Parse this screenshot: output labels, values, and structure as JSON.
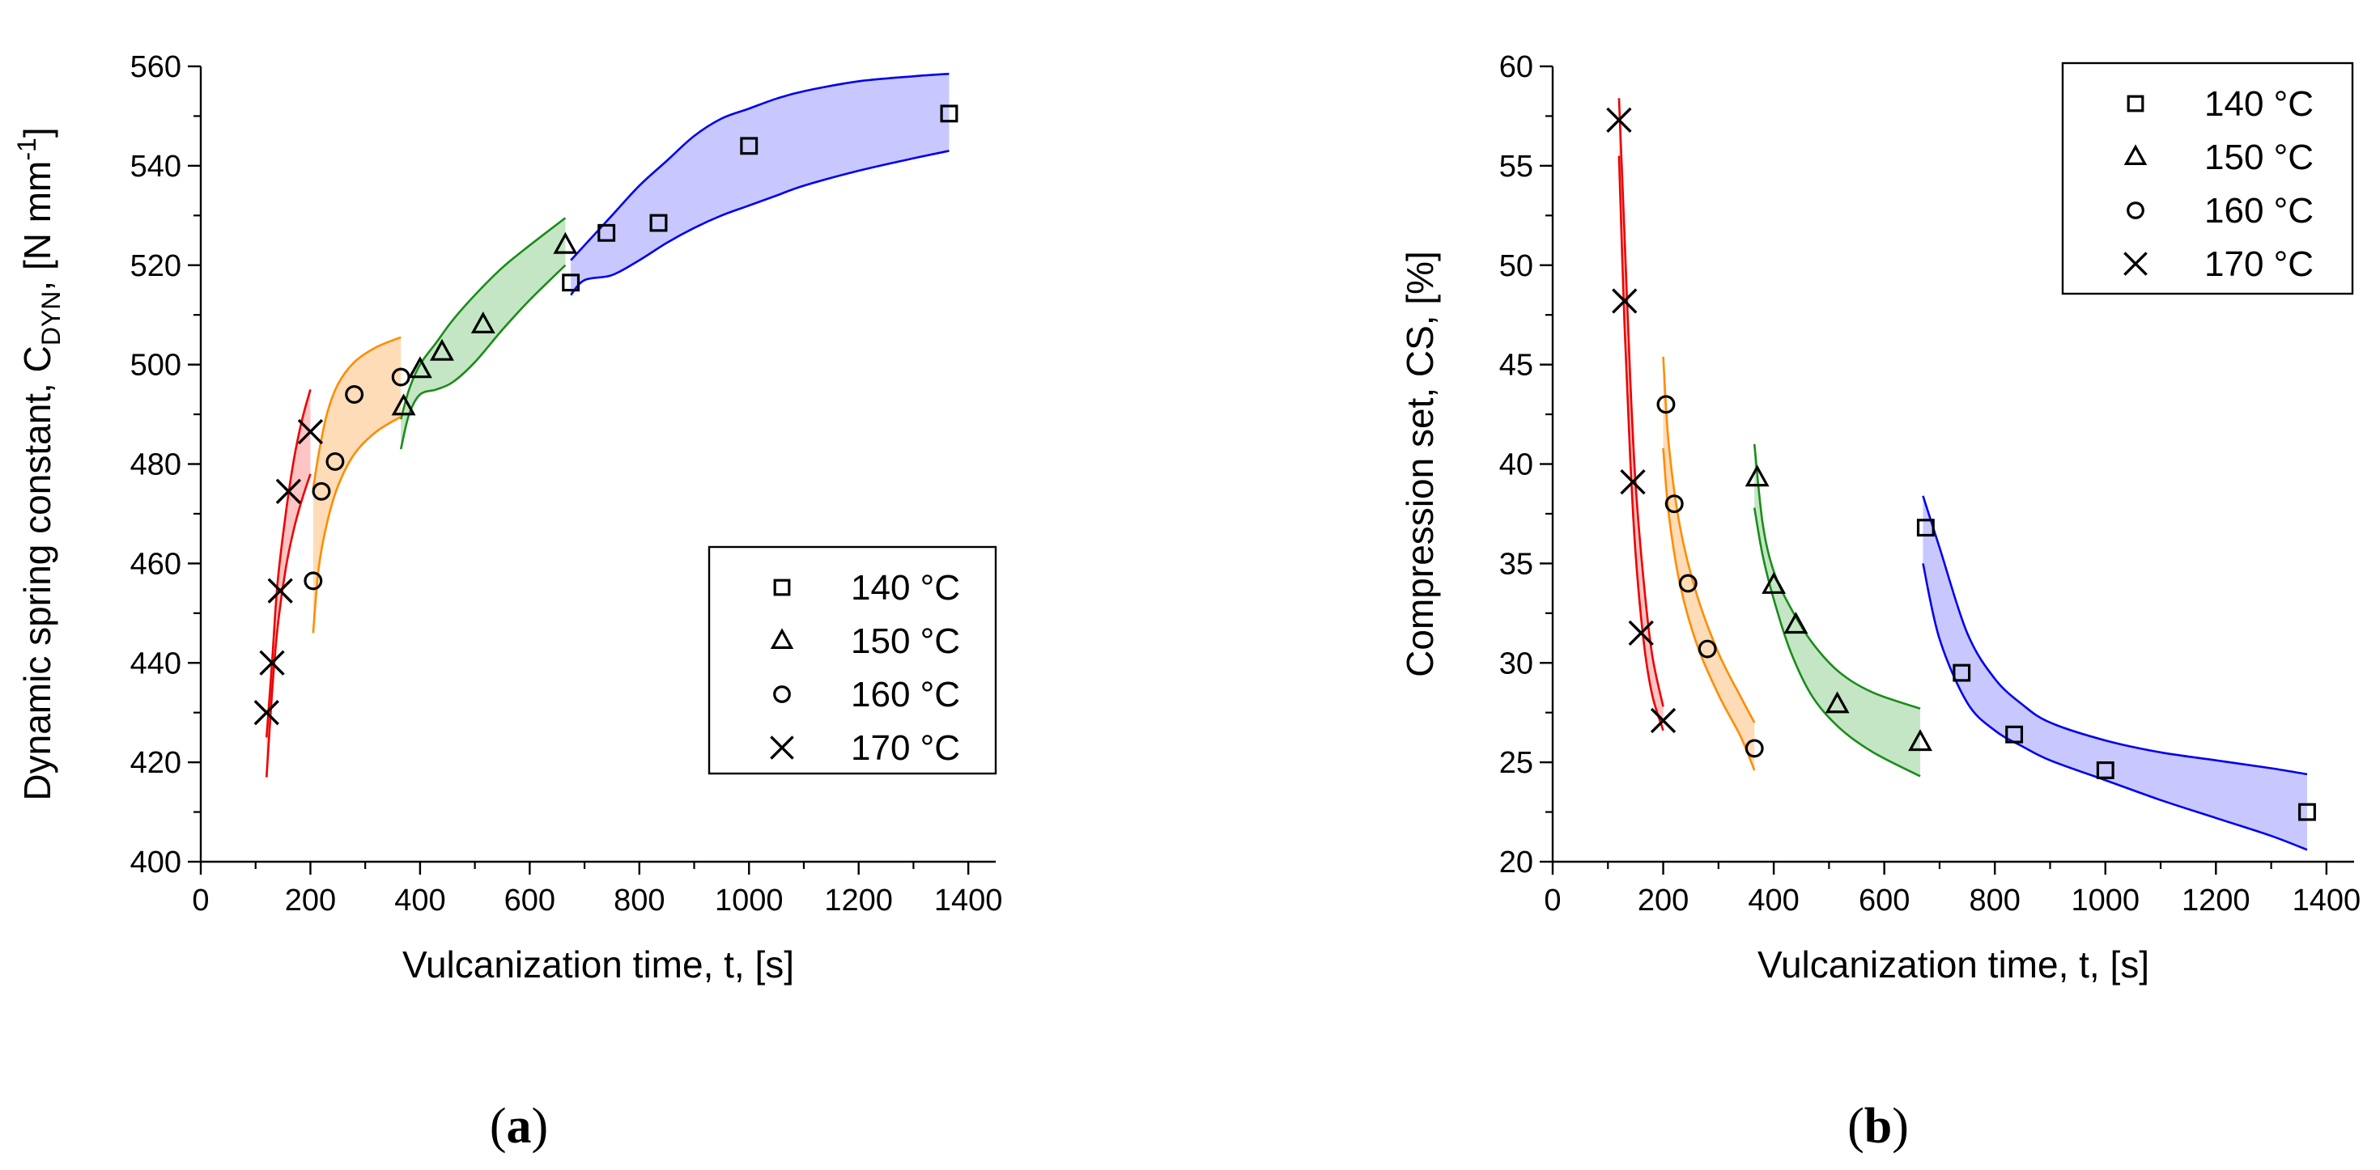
{
  "chart_data": [
    {
      "type": "scatter",
      "panel": "(a)",
      "panel_letter": "a",
      "xlabel": "Vulcanization time, t, [s]",
      "ylabel_parts": [
        "Dynamic spring constant, C",
        "DYN",
        ", [N mm",
        "-1",
        "]"
      ],
      "xlim": [
        0,
        1450
      ],
      "ylim": [
        400,
        560
      ],
      "xticks": [
        0,
        200,
        400,
        600,
        800,
        1000,
        1200,
        1400
      ],
      "yticks": [
        400,
        420,
        440,
        460,
        480,
        500,
        520,
        540,
        560
      ],
      "legend_position": "bottom-right",
      "series": [
        {
          "name": "140 °C",
          "marker": "square",
          "color": "#0000ee",
          "fill": "#c8c8ff",
          "x": [
            675,
            740,
            835,
            1000,
            1365
          ],
          "y": [
            516.5,
            526.5,
            528.5,
            544,
            550.5
          ],
          "band_x": [
            675,
            700,
            750,
            800,
            850,
            900,
            950,
            1000,
            1050,
            1100,
            1200,
            1300,
            1365
          ],
          "band_upper": [
            521,
            524,
            530,
            536,
            541,
            546,
            549.5,
            551.5,
            553.5,
            555,
            557,
            558,
            558.5
          ],
          "band_lower": [
            514,
            517,
            518,
            521,
            524.5,
            527.5,
            530,
            532,
            534,
            536,
            539,
            541.5,
            543
          ]
        },
        {
          "name": "150 °C",
          "marker": "triangle",
          "color": "#1a8c1a",
          "fill": "#c4e6c4",
          "x": [
            370,
            400,
            440,
            515,
            665
          ],
          "y": [
            491.5,
            499,
            502.5,
            508,
            524
          ],
          "band_x": [
            365,
            380,
            400,
            430,
            460,
            500,
            550,
            600,
            665
          ],
          "band_upper": [
            489,
            495,
            500,
            504.5,
            509,
            514,
            519.5,
            524,
            529.5
          ],
          "band_lower": [
            483,
            490,
            494,
            495,
            496.5,
            500.5,
            507,
            513,
            520
          ]
        },
        {
          "name": "160 °C",
          "marker": "circle",
          "color": "#ff8c00",
          "fill": "#ffdcb8",
          "x": [
            205,
            220,
            245,
            280,
            365
          ],
          "y": [
            456.5,
            474.5,
            480.5,
            494,
            497.5
          ],
          "band_x": [
            205,
            215,
            230,
            250,
            280,
            320,
            365
          ],
          "band_upper": [
            475,
            482,
            490,
            496,
            500.5,
            503.5,
            505.5
          ],
          "band_lower": [
            446,
            459,
            468,
            475.5,
            482,
            486.5,
            489.5
          ]
        },
        {
          "name": "170 °C",
          "marker": "cross",
          "color": "#ee0000",
          "fill": "#ffc4c4",
          "x": [
            120,
            130,
            145,
            160,
            200
          ],
          "y": [
            430,
            440,
            454.5,
            474.5,
            486.5
          ],
          "band_x": [
            120,
            130,
            140,
            155,
            170,
            185,
            200
          ],
          "band_upper": [
            425,
            440,
            456,
            470,
            481,
            489,
            495
          ],
          "band_lower": [
            417,
            434,
            447,
            459,
            467,
            473,
            478
          ]
        }
      ]
    },
    {
      "type": "scatter",
      "panel": "(b)",
      "panel_letter": "b",
      "xlabel": "Vulcanization time, t, [s]",
      "ylabel_parts": [
        "Compression set, CS, [%]"
      ],
      "xlim": [
        0,
        1450
      ],
      "ylim": [
        20,
        60
      ],
      "xticks": [
        0,
        200,
        400,
        600,
        800,
        1000,
        1200,
        1400
      ],
      "yticks": [
        20,
        25,
        30,
        35,
        40,
        45,
        50,
        55,
        60
      ],
      "legend_position": "top-right",
      "series": [
        {
          "name": "140 °C",
          "marker": "square",
          "color": "#0000ee",
          "fill": "#c8c8ff",
          "x": [
            675,
            740,
            835,
            1000,
            1365
          ],
          "y": [
            36.8,
            29.5,
            26.4,
            24.6,
            22.5
          ],
          "band_x": [
            670,
            700,
            750,
            800,
            850,
            900,
            1000,
            1100,
            1200,
            1300,
            1365
          ],
          "band_upper": [
            38.4,
            35.8,
            31.5,
            29.2,
            27.9,
            27.0,
            26.1,
            25.5,
            25.1,
            24.7,
            24.4
          ],
          "band_lower": [
            35.0,
            31.2,
            28.0,
            26.6,
            25.8,
            25.1,
            24.1,
            23.1,
            22.2,
            21.3,
            20.6
          ]
        },
        {
          "name": "150 °C",
          "marker": "triangle",
          "color": "#1a8c1a",
          "fill": "#c4e6c4",
          "x": [
            370,
            400,
            440,
            515,
            665
          ],
          "y": [
            39.3,
            33.9,
            31.9,
            27.9,
            26.0
          ],
          "band_x": [
            365,
            380,
            400,
            430,
            470,
            520,
            580,
            665
          ],
          "band_upper": [
            41.0,
            37.0,
            34.6,
            32.8,
            31.0,
            29.5,
            28.5,
            27.7
          ],
          "band_lower": [
            37.8,
            35.4,
            33.2,
            30.6,
            28.3,
            26.7,
            25.5,
            24.3
          ]
        },
        {
          "name": "160 °C",
          "marker": "circle",
          "color": "#ff8c00",
          "fill": "#ffdcb8",
          "x": [
            205,
            220,
            245,
            280,
            365
          ],
          "y": [
            43.0,
            38.0,
            34.0,
            30.7,
            25.7
          ],
          "band_x": [
            200,
            210,
            230,
            260,
            300,
            340,
            365
          ],
          "band_upper": [
            45.4,
            41.0,
            36.9,
            33.5,
            30.5,
            28.3,
            27.0
          ],
          "band_lower": [
            40.8,
            37.5,
            34.0,
            31.0,
            28.4,
            26.3,
            24.6
          ]
        },
        {
          "name": "170 °C",
          "marker": "cross",
          "color": "#ee0000",
          "fill": "#ffc4c4",
          "x": [
            120,
            130,
            145,
            160,
            200
          ],
          "y": [
            57.3,
            48.2,
            39.1,
            31.5,
            27.1
          ],
          "band_x": [
            120,
            130,
            140,
            150,
            165,
            180,
            200
          ],
          "band_upper": [
            58.4,
            51.5,
            44.5,
            39.0,
            34.0,
            30.4,
            27.8
          ],
          "band_lower": [
            55.5,
            47.0,
            40.5,
            35.5,
            31.0,
            28.4,
            26.6
          ]
        }
      ]
    }
  ]
}
